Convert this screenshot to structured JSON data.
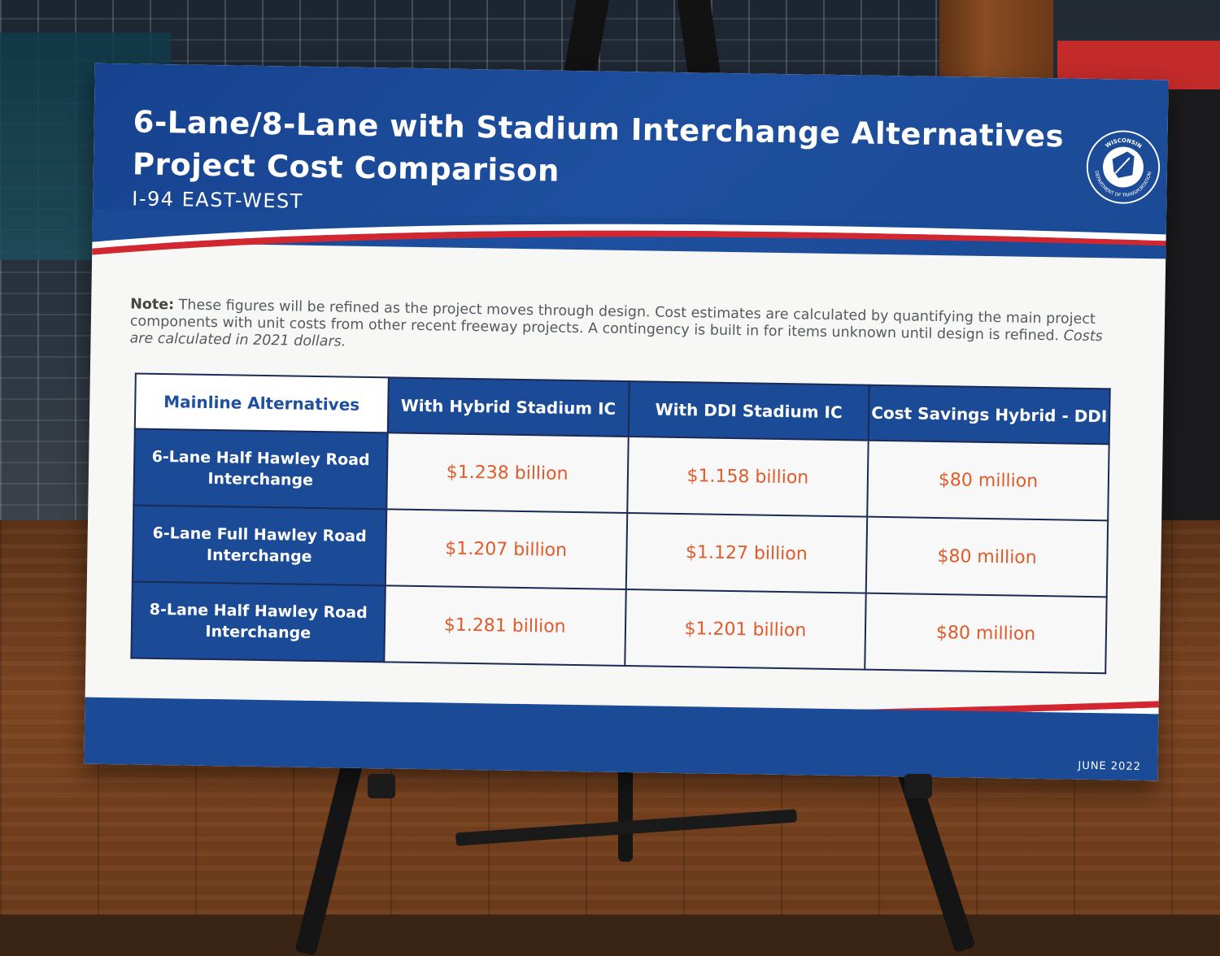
{
  "header": {
    "title_line1": "6-Lane/8-Lane with Stadium Interchange Alternatives",
    "title_line2": "Project Cost Comparison",
    "subtitle": "I-94 EAST-WEST"
  },
  "logo": {
    "top_text": "WISCONSIN",
    "bottom_text": "DEPARTMENT OF TRANSPORTATION"
  },
  "note": {
    "label": "Note:",
    "text1": " These figures will be refined as the project moves through design. ",
    "text2": "Cost estimates are calculated by quantifying the main project components with unit costs from other recent freeway projects. A contingency is built in for items unknown until design is refined. ",
    "text3": "Costs are calculated in 2021 dollars."
  },
  "table": {
    "headers": [
      "Mainline Alternatives",
      "With Hybrid Stadium IC",
      "With DDI Stadium IC",
      "Cost Savings Hybrid - DDI"
    ],
    "rows": [
      {
        "label": "6-Lane Half Hawley Road Interchange",
        "hybrid": "$1.238 billion",
        "ddi": "$1.158 billion",
        "savings": "$80 million"
      },
      {
        "label": "6-Lane Full Hawley Road Interchange",
        "hybrid": "$1.207 billion",
        "ddi": "$1.127 billion",
        "savings": "$80 million"
      },
      {
        "label": "8-Lane Half Hawley Road Interchange",
        "hybrid": "$1.281 billion",
        "ddi": "$1.201 billion",
        "savings": "$80 million"
      }
    ]
  },
  "footer": {
    "date": "JUNE 2022"
  },
  "colors": {
    "brand_blue": "#1b4a96",
    "accent_red": "#d22630",
    "value_orange": "#e15b2a"
  }
}
